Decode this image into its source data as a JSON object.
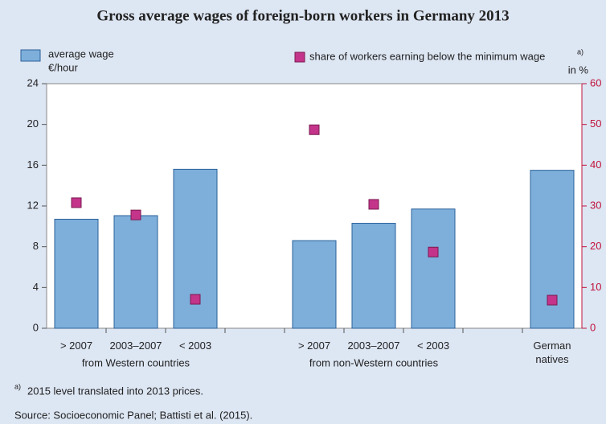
{
  "chart_data": {
    "type": "bar",
    "title": "Gross average wages of foreign-born workers in Germany 2013",
    "categories": [
      "> 2007",
      "2003–2007",
      "< 2003",
      null,
      "> 2007",
      "2003–2007",
      "< 2003",
      null,
      "German natives"
    ],
    "groups": [
      "from Western countries",
      "from non-Western countries"
    ],
    "series": [
      {
        "name": "average wage",
        "unit": "€/hour",
        "color": "#7eafdb",
        "values": [
          10.7,
          11.05,
          15.6,
          null,
          8.6,
          10.3,
          11.7,
          null,
          15.5
        ]
      },
      {
        "name": "share of workers earning below the minimum wage",
        "note_marker": "a)",
        "unit": "in %",
        "color": "#c4348a",
        "axis": "y2",
        "values": [
          30.8,
          27.8,
          7.1,
          null,
          48.7,
          30.4,
          18.7,
          null,
          6.9
        ]
      }
    ],
    "ylim": [
      0,
      24
    ],
    "yticks": [
      0,
      4,
      8,
      12,
      16,
      20,
      24
    ],
    "y2lim": [
      0,
      60
    ],
    "y2ticks": [
      0,
      10,
      20,
      30,
      40,
      50,
      60
    ],
    "y2color": "#c0143c",
    "footnote": {
      "marker": "a)",
      "text": "2015 level translated into 2013 prices."
    },
    "source": "Source: Socioeconomic Panel; Battisti et al. (2015)."
  }
}
